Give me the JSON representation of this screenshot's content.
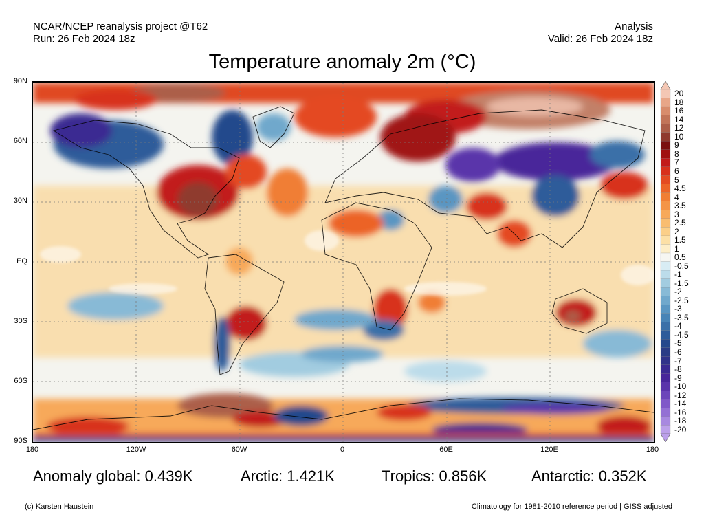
{
  "header": {
    "left_line1": "NCAR/NCEP reanalysis project @T62",
    "left_line2": "Run: 26 Feb 2024 18z",
    "right_line1": "Analysis",
    "right_line2": "Valid: 26 Feb 2024 18z"
  },
  "title": "Temperature anomaly 2m (°C)",
  "lat_labels": [
    "90N",
    "60N",
    "30N",
    "EQ",
    "30S",
    "60S",
    "90S"
  ],
  "lon_labels": [
    "180",
    "120W",
    "60W",
    "0",
    "60E",
    "120E",
    "180"
  ],
  "colorbar": {
    "labels": [
      "20",
      "18",
      "16",
      "14",
      "12",
      "10",
      "9",
      "8",
      "7",
      "6",
      "5",
      "4.5",
      "4",
      "3.5",
      "3",
      "2.5",
      "2",
      "1.5",
      "1",
      "0.5",
      "-0.5",
      "-1",
      "-1.5",
      "-2",
      "-2.5",
      "-3",
      "-3.5",
      "-4",
      "-4.5",
      "-5",
      "-6",
      "-7",
      "-8",
      "-9",
      "-10",
      "-12",
      "-14",
      "-16",
      "-18",
      "-20"
    ],
    "colors": [
      "#f4c7b4",
      "#e8a688",
      "#d88c6c",
      "#c27458",
      "#ac5e48",
      "#8f3a2e",
      "#7a1010",
      "#a01212",
      "#c21a1a",
      "#d8301c",
      "#e44a22",
      "#ec6428",
      "#f07e34",
      "#f49446",
      "#f7a95a",
      "#f9bd70",
      "#fbcf88",
      "#fce0a6",
      "#fdeec8",
      "#f6f6f2",
      "#d8ecf4",
      "#bcdcea",
      "#a2cce0",
      "#88bad6",
      "#70a8cc",
      "#5a96c2",
      "#4884b6",
      "#3a70a8",
      "#2e5c9a",
      "#24488c",
      "#2a3c86",
      "#30338a",
      "#3a2a92",
      "#48269a",
      "#5a34aa",
      "#6c46ba",
      "#8058c8",
      "#9470d4",
      "#a888e0",
      "#bca0ea"
    ]
  },
  "stats": {
    "global": "Anomaly global: 0.439K",
    "arctic": "Arctic: 1.421K",
    "tropics": "Tropics: 0.856K",
    "antarctic": "Antarctic: 0.352K"
  },
  "footer": {
    "left": "(c) Karsten Haustein",
    "right": "Climatology for 1981-2010 reference period | GISS adjusted"
  }
}
